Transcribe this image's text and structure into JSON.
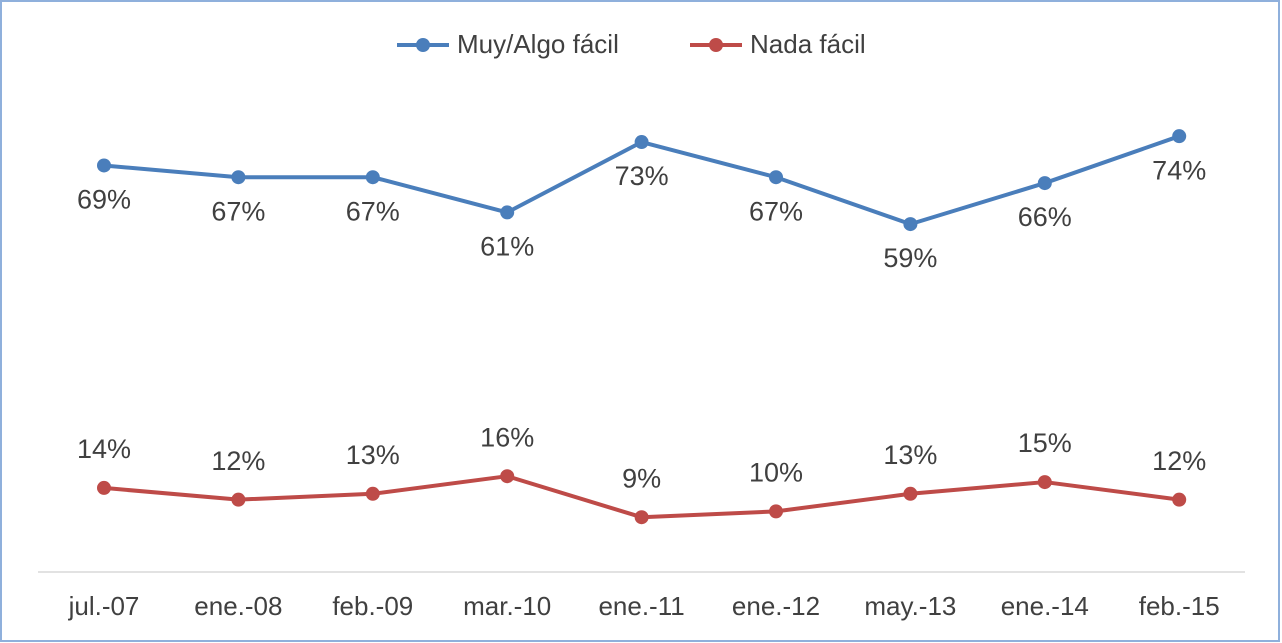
{
  "chart_data": {
    "type": "line",
    "categories": [
      "jul.-07",
      "ene.-08",
      "feb.-09",
      "mar.-10",
      "ene.-11",
      "ene.-12",
      "may.-13",
      "ene.-14",
      "feb.-15"
    ],
    "series": [
      {
        "name": "Muy/Algo fácil",
        "color": "#4a7ebb",
        "values": [
          69,
          67,
          67,
          61,
          73,
          67,
          59,
          66,
          74
        ],
        "value_labels": [
          "69%",
          "67%",
          "67%",
          "61%",
          "73%",
          "67%",
          "59%",
          "66%",
          "74%"
        ]
      },
      {
        "name": "Nada fácil",
        "color": "#be4b48",
        "values": [
          14,
          12,
          13,
          16,
          9,
          10,
          13,
          15,
          12
        ],
        "value_labels": [
          "14%",
          "12%",
          "13%",
          "16%",
          "9%",
          "10%",
          "13%",
          "15%",
          "12%"
        ]
      }
    ],
    "ylim": [
      0,
      80
    ],
    "legend": "top"
  }
}
